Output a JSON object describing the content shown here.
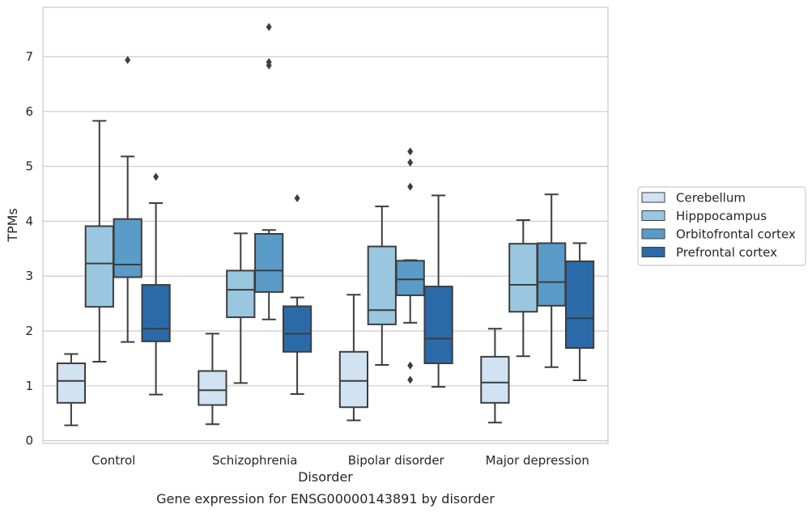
{
  "caption": "Gene expression for ENSG00000143891 by disorder",
  "chart_data": {
    "type": "box",
    "xlabel": "Disorder",
    "ylabel": "TPMs",
    "categories": [
      "Control",
      "Schizophrenia",
      "Bipolar disorder",
      "Major depression"
    ],
    "ylim": [
      -0.05,
      7.9
    ],
    "yticks": [
      0,
      1,
      2,
      3,
      4,
      5,
      6,
      7
    ],
    "grid": "horizontal",
    "legend_position": "right",
    "series": [
      {
        "name": "Cerebellum",
        "color": "#d1e2f2",
        "boxes": [
          {
            "whislo": 0.28,
            "q1": 0.69,
            "med": 1.09,
            "q3": 1.41,
            "whishi": 1.58,
            "fliers": []
          },
          {
            "whislo": 0.3,
            "q1": 0.65,
            "med": 0.92,
            "q3": 1.27,
            "whishi": 1.95,
            "fliers": []
          },
          {
            "whislo": 0.37,
            "q1": 0.61,
            "med": 1.09,
            "q3": 1.62,
            "whishi": 2.66,
            "fliers": []
          },
          {
            "whislo": 0.33,
            "q1": 0.69,
            "med": 1.06,
            "q3": 1.53,
            "whishi": 2.04,
            "fliers": []
          }
        ]
      },
      {
        "name": "Hipppocampus",
        "color": "#9ac7e0",
        "boxes": [
          {
            "whislo": 1.44,
            "q1": 2.44,
            "med": 3.23,
            "q3": 3.91,
            "whishi": 5.83,
            "fliers": []
          },
          {
            "whislo": 1.05,
            "q1": 2.25,
            "med": 2.75,
            "q3": 3.1,
            "whishi": 3.78,
            "fliers": []
          },
          {
            "whislo": 1.38,
            "q1": 2.12,
            "med": 2.38,
            "q3": 3.54,
            "whishi": 4.27,
            "fliers": []
          },
          {
            "whislo": 1.54,
            "q1": 2.35,
            "med": 2.84,
            "q3": 3.59,
            "whishi": 4.02,
            "fliers": []
          }
        ]
      },
      {
        "name": "Orbitofrontal cortex",
        "color": "#5a9bc7",
        "boxes": [
          {
            "whislo": 1.8,
            "q1": 2.98,
            "med": 3.21,
            "q3": 4.04,
            "whishi": 5.18,
            "fliers": [
              6.94
            ]
          },
          {
            "whislo": 2.21,
            "q1": 2.71,
            "med": 3.1,
            "q3": 3.77,
            "whishi": 3.84,
            "fliers": [
              6.84,
              6.9,
              7.54
            ]
          },
          {
            "whislo": 2.15,
            "q1": 2.65,
            "med": 2.94,
            "q3": 3.28,
            "whishi": 3.29,
            "fliers": [
              1.11,
              1.37,
              4.63,
              5.07,
              5.27
            ]
          },
          {
            "whislo": 1.34,
            "q1": 2.46,
            "med": 2.89,
            "q3": 3.6,
            "whishi": 4.49,
            "fliers": []
          }
        ]
      },
      {
        "name": "Prefrontal cortex",
        "color": "#2b6aa8",
        "boxes": [
          {
            "whislo": 0.84,
            "q1": 1.81,
            "med": 2.04,
            "q3": 2.84,
            "whishi": 4.33,
            "fliers": [
              4.81
            ]
          },
          {
            "whislo": 0.85,
            "q1": 1.62,
            "med": 1.95,
            "q3": 2.45,
            "whishi": 2.61,
            "fliers": [
              4.42
            ]
          },
          {
            "whislo": 0.98,
            "q1": 1.41,
            "med": 1.86,
            "q3": 2.81,
            "whishi": 4.47,
            "fliers": []
          },
          {
            "whislo": 1.1,
            "q1": 1.69,
            "med": 2.23,
            "q3": 3.27,
            "whishi": 3.6,
            "fliers": []
          }
        ]
      }
    ]
  }
}
